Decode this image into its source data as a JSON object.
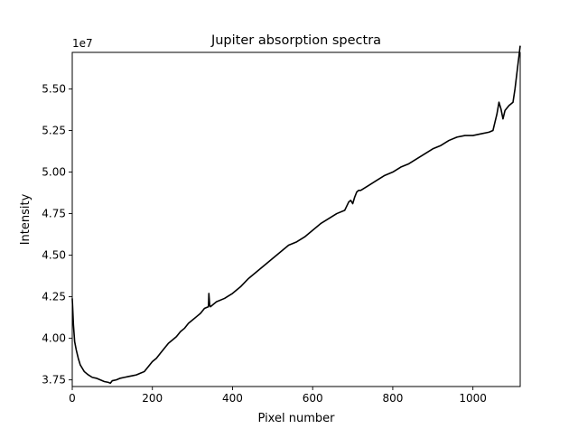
{
  "chart_data": {
    "type": "line",
    "title": "Jupiter absorption spectra",
    "xlabel": "Pixel number",
    "ylabel": "Intensity",
    "y_offset_label": "1e7",
    "xlim": [
      0,
      1118
    ],
    "ylim": [
      37100000,
      57200000
    ],
    "x_ticks": [
      0,
      200,
      400,
      600,
      800,
      1000
    ],
    "y_ticks": [
      37500000,
      40000000,
      42500000,
      45000000,
      47500000,
      50000000,
      52500000,
      55000000
    ],
    "x_tick_labels": [
      "0",
      "200",
      "400",
      "600",
      "800",
      "1000"
    ],
    "y_tick_labels": [
      "3.75",
      "4.00",
      "4.25",
      "4.50",
      "4.75",
      "5.00",
      "5.25",
      "5.50"
    ],
    "grid": false,
    "series": [
      {
        "color": "#000000",
        "x": [
          0,
          3,
          6,
          10,
          15,
          20,
          25,
          30,
          40,
          50,
          60,
          70,
          80,
          90,
          95,
          100,
          110,
          120,
          130,
          140,
          150,
          160,
          170,
          180,
          190,
          200,
          210,
          220,
          230,
          240,
          250,
          260,
          270,
          280,
          290,
          300,
          310,
          320,
          330,
          340,
          341,
          343,
          345,
          350,
          360,
          380,
          400,
          420,
          440,
          460,
          480,
          500,
          520,
          540,
          560,
          580,
          600,
          620,
          640,
          660,
          680,
          690,
          695,
          700,
          705,
          710,
          715,
          720,
          740,
          760,
          780,
          800,
          820,
          840,
          860,
          880,
          900,
          920,
          940,
          960,
          980,
          1000,
          1020,
          1040,
          1050,
          1055,
          1060,
          1065,
          1070,
          1075,
          1080,
          1090,
          1100,
          1105,
          1110,
          1115,
          1118
        ],
        "y": [
          42400000,
          40800000,
          39800000,
          39300000,
          38800000,
          38400000,
          38200000,
          38000000,
          37800000,
          37650000,
          37600000,
          37500000,
          37400000,
          37350000,
          37300000,
          37450000,
          37500000,
          37600000,
          37650000,
          37700000,
          37750000,
          37800000,
          37900000,
          38000000,
          38300000,
          38600000,
          38800000,
          39100000,
          39400000,
          39700000,
          39900000,
          40100000,
          40400000,
          40600000,
          40900000,
          41100000,
          41300000,
          41500000,
          41800000,
          41900000,
          42700000,
          42000000,
          41900000,
          42000000,
          42200000,
          42400000,
          42700000,
          43100000,
          43600000,
          44000000,
          44400000,
          44800000,
          45200000,
          45600000,
          45800000,
          46100000,
          46500000,
          46900000,
          47200000,
          47500000,
          47700000,
          48200000,
          48300000,
          48100000,
          48500000,
          48800000,
          48900000,
          48900000,
          49200000,
          49500000,
          49800000,
          50000000,
          50300000,
          50500000,
          50800000,
          51100000,
          51400000,
          51600000,
          51900000,
          52100000,
          52200000,
          52200000,
          52300000,
          52400000,
          52500000,
          53000000,
          53500000,
          54200000,
          53800000,
          53200000,
          53700000,
          54000000,
          54200000,
          55000000,
          56000000,
          57000000,
          57600000
        ]
      }
    ]
  }
}
